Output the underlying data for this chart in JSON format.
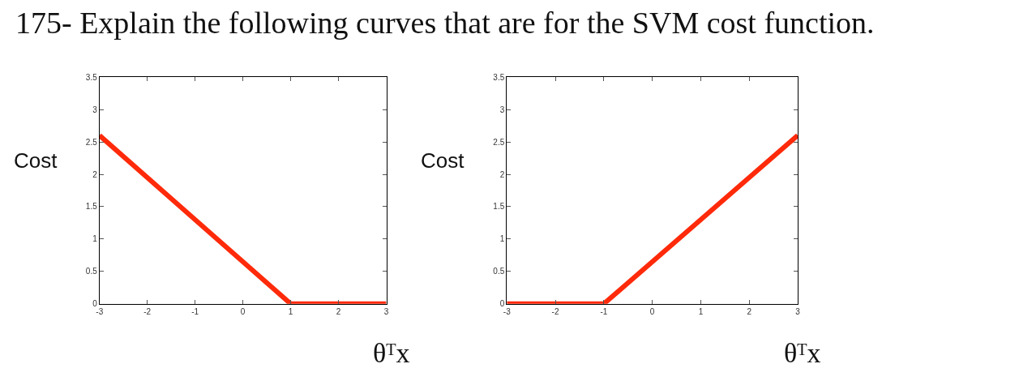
{
  "chart_data": [
    {
      "type": "line",
      "title": "175- Explain the following curves that are for the SVM cost function.",
      "xlabel": "θᵀx",
      "ylabel": "Cost",
      "x": [
        -3,
        1,
        3
      ],
      "series": [
        {
          "color": "#ff2a0a",
          "values": [
            2.6,
            0,
            0
          ]
        }
      ],
      "xlim": [
        -3,
        3
      ],
      "ylim": [
        0,
        3.5
      ],
      "xticks": [
        -3,
        -2,
        -1,
        0,
        1,
        2,
        3
      ],
      "yticks": [
        0,
        0.5,
        1,
        1.5,
        2,
        2.5,
        3,
        3.5
      ],
      "marker": "none",
      "line_style": "solid"
    },
    {
      "type": "line",
      "xlabel": "θᵀx",
      "ylabel": "Cost",
      "x": [
        -3,
        -1,
        3
      ],
      "series": [
        {
          "color": "#ff2a0a",
          "values": [
            0,
            0,
            2.6
          ]
        }
      ],
      "xlim": [
        -3,
        3
      ],
      "ylim": [
        0,
        3.5
      ],
      "xticks": [
        -3,
        -2,
        -1,
        0,
        1,
        2,
        3
      ],
      "yticks": [
        0,
        0.5,
        1,
        1.5,
        2,
        2.5,
        3,
        3.5
      ],
      "marker": "none",
      "line_style": "solid"
    }
  ]
}
